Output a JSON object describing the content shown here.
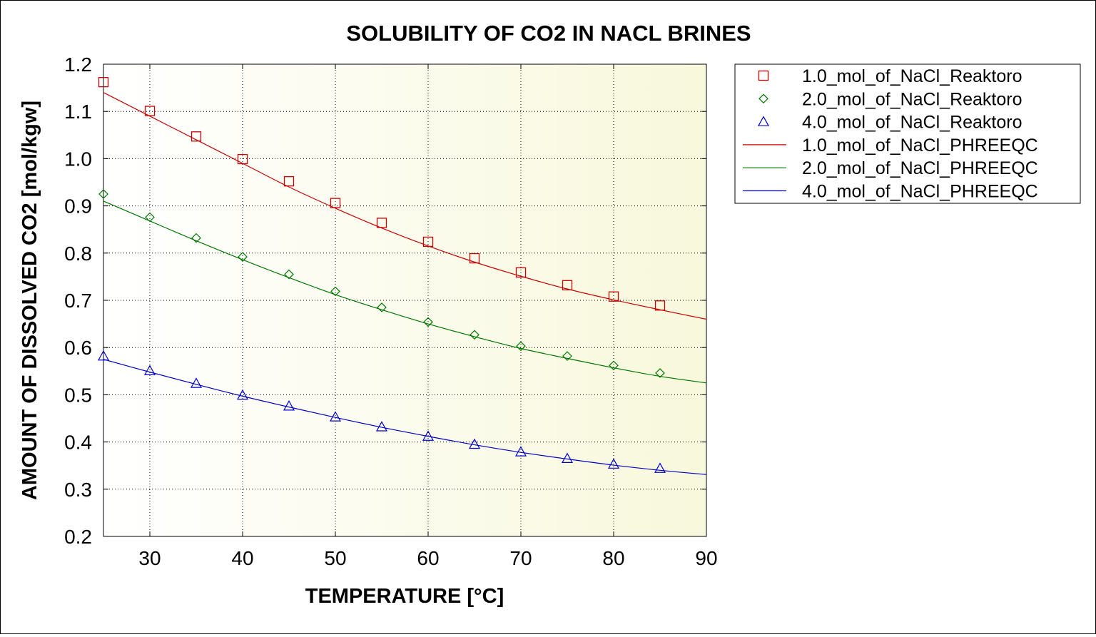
{
  "colors": {
    "series_1": "#cc0000",
    "series_2": "#007700",
    "series_3": "#0000cc",
    "plot_bg_left": "#ffffff",
    "plot_bg_right": "#f8f8dc",
    "grid": "#000000"
  },
  "chart_data": {
    "type": "scatter",
    "title": "SOLUBILITY OF CO2 IN NACL BRINES",
    "xlabel": "TEMPERATURE [°C]",
    "ylabel": "AMOUNT OF DISSOLVED CO2 [mol/kgw]",
    "xlim": [
      25,
      90
    ],
    "ylim": [
      0.2,
      1.2
    ],
    "xticks": [
      30,
      40,
      50,
      60,
      70,
      80,
      90
    ],
    "yticks": [
      0.2,
      0.3,
      0.4,
      0.5,
      0.6,
      0.7,
      0.8,
      0.9,
      1.0,
      1.1,
      1.2
    ],
    "ytick_labels": [
      "0.2",
      "0.3",
      "0.4",
      "0.5",
      "0.6",
      "0.7",
      "0.8",
      "0.9",
      "1.0",
      "1.1",
      "1.2"
    ],
    "grid": true,
    "legend_position": "outside-right",
    "markers": [
      {
        "name": "1.0_mol_of_NaCl_Reaktoro",
        "marker": "square",
        "color": "#cc0000",
        "x": [
          25,
          30,
          35,
          40,
          45,
          50,
          55,
          60,
          65,
          70,
          75,
          80,
          85
        ],
        "y": [
          1.162,
          1.101,
          1.047,
          0.999,
          0.952,
          0.906,
          0.864,
          0.824,
          0.789,
          0.759,
          0.732,
          0.708,
          0.689
        ]
      },
      {
        "name": "2.0_mol_of_NaCl_Reaktoro",
        "marker": "diamond",
        "color": "#007700",
        "x": [
          25,
          30,
          35,
          40,
          45,
          50,
          55,
          60,
          65,
          70,
          75,
          80,
          85
        ],
        "y": [
          0.925,
          0.876,
          0.832,
          0.792,
          0.755,
          0.719,
          0.685,
          0.654,
          0.627,
          0.603,
          0.582,
          0.562,
          0.546
        ]
      },
      {
        "name": "4.0_mol_of_NaCl_Reaktoro",
        "marker": "triangle",
        "color": "#0000cc",
        "x": [
          25,
          30,
          35,
          40,
          45,
          50,
          55,
          60,
          65,
          70,
          75,
          80,
          85
        ],
        "y": [
          0.582,
          0.551,
          0.524,
          0.499,
          0.476,
          0.453,
          0.432,
          0.412,
          0.395,
          0.379,
          0.365,
          0.353,
          0.344
        ]
      }
    ],
    "lines": [
      {
        "name": "1.0_mol_of_NaCl_PHREEQC",
        "color": "#cc0000",
        "x": [
          25,
          30,
          35,
          40,
          45,
          50,
          55,
          60,
          65,
          70,
          75,
          80,
          85,
          90
        ],
        "y": [
          1.14,
          1.09,
          1.04,
          0.99,
          0.94,
          0.895,
          0.853,
          0.815,
          0.781,
          0.751,
          0.724,
          0.701,
          0.68,
          0.66
        ]
      },
      {
        "name": "2.0_mol_of_NaCl_PHREEQC",
        "color": "#007700",
        "x": [
          25,
          30,
          35,
          40,
          45,
          50,
          55,
          60,
          65,
          70,
          75,
          80,
          85,
          90
        ],
        "y": [
          0.91,
          0.868,
          0.826,
          0.786,
          0.748,
          0.712,
          0.68,
          0.65,
          0.623,
          0.598,
          0.577,
          0.557,
          0.539,
          0.525
        ]
      },
      {
        "name": "4.0_mol_of_NaCl_PHREEQC",
        "color": "#0000cc",
        "x": [
          25,
          30,
          35,
          40,
          45,
          50,
          55,
          60,
          65,
          70,
          75,
          80,
          85,
          90
        ],
        "y": [
          0.575,
          0.548,
          0.522,
          0.497,
          0.474,
          0.452,
          0.431,
          0.412,
          0.394,
          0.378,
          0.364,
          0.351,
          0.34,
          0.331
        ]
      }
    ],
    "legend": [
      {
        "label": "1.0_mol_of_NaCl_Reaktoro",
        "kind": "marker",
        "marker": "square",
        "color": "#cc0000"
      },
      {
        "label": "2.0_mol_of_NaCl_Reaktoro",
        "kind": "marker",
        "marker": "diamond",
        "color": "#007700"
      },
      {
        "label": "4.0_mol_of_NaCl_Reaktoro",
        "kind": "marker",
        "marker": "triangle",
        "color": "#0000cc"
      },
      {
        "label": "1.0_mol_of_NaCl_PHREEQC",
        "kind": "line",
        "color": "#cc0000"
      },
      {
        "label": "2.0_mol_of_NaCl_PHREEQC",
        "kind": "line",
        "color": "#007700"
      },
      {
        "label": "4.0_mol_of_NaCl_PHREEQC",
        "kind": "line",
        "color": "#0000cc"
      }
    ]
  }
}
